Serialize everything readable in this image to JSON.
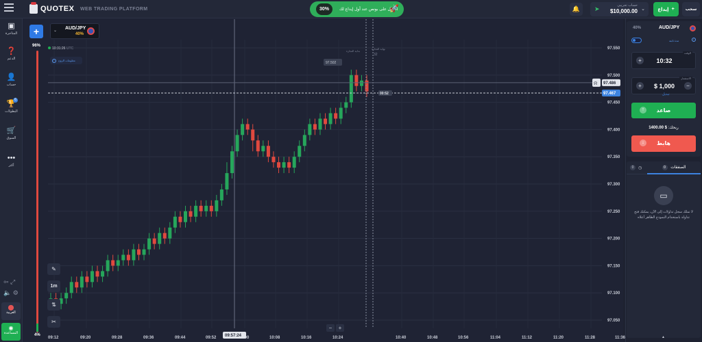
{
  "header": {
    "logo_text": "QUOTEX",
    "platform": "WEB TRADING PLATFORM",
    "promo": {
      "percent": "30%",
      "text": "احصل على بونص عند أول إيداع لك",
      "icon": "rocket-icon"
    },
    "account": {
      "label": "حساب تجريبي",
      "balance": "$10,000.00"
    },
    "deposit_label": "إيداع",
    "withdraw_label": "سحب"
  },
  "sidebar": {
    "items": [
      {
        "label": "المتاجرة",
        "icon": "chart-icon"
      },
      {
        "label": "الدعم",
        "icon": "help-icon"
      },
      {
        "label": "حساب",
        "icon": "user-icon"
      },
      {
        "label": "البطولات",
        "icon": "trophy-icon",
        "badge": "6"
      },
      {
        "label": "السوق",
        "icon": "market-icon"
      },
      {
        "label": "أكثر",
        "icon": "more-icon"
      }
    ],
    "language_label": "العربية",
    "support_label": "المساعدة"
  },
  "chart_toolbar": {
    "asset": "AUD/JPY",
    "asset_payout": "40%",
    "time": "10:31:26",
    "timezone": "UTC",
    "info_pill": "معلومات الزوج",
    "timeframe": "1m",
    "volume_top": "96%",
    "volume_bottom": "4%",
    "zoom_minus": "−",
    "zoom_plus": "+"
  },
  "chart_annotations": {
    "start_label": "بداية التجارة",
    "end_label": "نهاية التجارة",
    "end_seconds": "32",
    "current_price": "97.467",
    "alert_price": "97.486",
    "cursor_price": "97.502",
    "countdown": "00:52",
    "cursor_time": "09:57:24"
  },
  "chart_data": {
    "type": "candlestick",
    "y_ticks": [
      "97.550",
      "97.500",
      "97.450",
      "97.400",
      "97.350",
      "97.300",
      "97.250",
      "97.200",
      "97.150",
      "97.100",
      "97.050"
    ],
    "x_ticks": [
      "09:12",
      "09:20",
      "09:28",
      "09:36",
      "09:44",
      "09:52",
      "10:00",
      "10:08",
      "10:16",
      "10:24",
      "10:40",
      "10:48",
      "10:56",
      "11:04",
      "11:12",
      "11:20",
      "11:28",
      "11:36"
    ],
    "ylim": [
      97.035,
      97.565
    ],
    "colors": {
      "up": "#26a65b",
      "down": "#e0493f"
    },
    "candles": [
      [
        97.08,
        97.09,
        97.07,
        97.1
      ],
      [
        97.09,
        97.08,
        97.07,
        97.1
      ],
      [
        97.08,
        97.09,
        97.07,
        97.1
      ],
      [
        97.09,
        97.1,
        97.08,
        97.11
      ],
      [
        97.1,
        97.12,
        97.09,
        97.13
      ],
      [
        97.12,
        97.11,
        97.1,
        97.13
      ],
      [
        97.11,
        97.13,
        97.1,
        97.14
      ],
      [
        97.13,
        97.12,
        97.11,
        97.14
      ],
      [
        97.12,
        97.14,
        97.11,
        97.15
      ],
      [
        97.14,
        97.13,
        97.12,
        97.15
      ],
      [
        97.13,
        97.14,
        97.12,
        97.15
      ],
      [
        97.14,
        97.16,
        97.13,
        97.17
      ],
      [
        97.16,
        97.15,
        97.14,
        97.17
      ],
      [
        97.15,
        97.16,
        97.14,
        97.17
      ],
      [
        97.16,
        97.17,
        97.15,
        97.18
      ],
      [
        97.17,
        97.16,
        97.15,
        97.18
      ],
      [
        97.16,
        97.18,
        97.15,
        97.19
      ],
      [
        97.18,
        97.17,
        97.16,
        97.19
      ],
      [
        97.17,
        97.18,
        97.16,
        97.19
      ],
      [
        97.18,
        97.2,
        97.17,
        97.21
      ],
      [
        97.2,
        97.19,
        97.18,
        97.21
      ],
      [
        97.19,
        97.21,
        97.18,
        97.22
      ],
      [
        97.21,
        97.2,
        97.19,
        97.22
      ],
      [
        97.2,
        97.22,
        97.19,
        97.23
      ],
      [
        97.22,
        97.24,
        97.21,
        97.25
      ],
      [
        97.24,
        97.23,
        97.22,
        97.25
      ],
      [
        97.23,
        97.25,
        97.22,
        97.26
      ],
      [
        97.25,
        97.24,
        97.23,
        97.26
      ],
      [
        97.24,
        97.26,
        97.23,
        97.27
      ],
      [
        97.26,
        97.25,
        97.24,
        97.27
      ],
      [
        97.25,
        97.26,
        97.24,
        97.27
      ],
      [
        97.26,
        97.25,
        97.24,
        97.27
      ],
      [
        97.25,
        97.27,
        97.24,
        97.28
      ],
      [
        97.27,
        97.29,
        97.26,
        97.3
      ],
      [
        97.29,
        97.32,
        97.28,
        97.34
      ],
      [
        97.32,
        97.36,
        97.31,
        97.37
      ],
      [
        97.36,
        97.39,
        97.35,
        97.4
      ],
      [
        97.39,
        97.41,
        97.38,
        97.42
      ],
      [
        97.41,
        97.4,
        97.39,
        97.42
      ],
      [
        97.4,
        97.38,
        97.36,
        97.41
      ],
      [
        97.38,
        97.36,
        97.35,
        97.39
      ],
      [
        97.36,
        97.37,
        97.35,
        97.38
      ],
      [
        97.37,
        97.35,
        97.34,
        97.38
      ],
      [
        97.35,
        97.34,
        97.33,
        97.36
      ],
      [
        97.34,
        97.33,
        97.32,
        97.35
      ],
      [
        97.33,
        97.34,
        97.32,
        97.35
      ],
      [
        97.34,
        97.33,
        97.32,
        97.35
      ],
      [
        97.33,
        97.35,
        97.32,
        97.36
      ],
      [
        97.35,
        97.37,
        97.34,
        97.38
      ],
      [
        97.37,
        97.39,
        97.36,
        97.4
      ],
      [
        97.39,
        97.41,
        97.38,
        97.42
      ],
      [
        97.41,
        97.4,
        97.39,
        97.42
      ],
      [
        97.4,
        97.42,
        97.39,
        97.43
      ],
      [
        97.42,
        97.41,
        97.4,
        97.43
      ],
      [
        97.41,
        97.43,
        97.4,
        97.44
      ],
      [
        97.43,
        97.42,
        97.41,
        97.44
      ],
      [
        97.42,
        97.44,
        97.41,
        97.45
      ],
      [
        97.44,
        97.45,
        97.43,
        97.46
      ],
      [
        97.45,
        97.5,
        97.44,
        97.51
      ],
      [
        97.5,
        97.48,
        97.47,
        97.51
      ],
      [
        97.48,
        97.49,
        97.47,
        97.5
      ],
      [
        97.49,
        97.47,
        97.46,
        97.5
      ]
    ]
  },
  "trade_panel": {
    "payout": "40%",
    "asset": "AUD/JPY",
    "toggle_label": "مدة ثابتة",
    "time_label": "الوقت",
    "time_value": "10:32",
    "amount_label": "الاستثمار",
    "amount_value": "$ 1,000",
    "switch_link": "تبديل",
    "up_label": "صاعد",
    "down_label": "هابط",
    "payout_label": "ربحك:",
    "payout_value": "$ 1400.00"
  },
  "trades_panel": {
    "tab_active": "الصفقات",
    "tab_active_count": "0",
    "tab_other_count": "0",
    "empty_text": "لا تملك سجل تداولات إلى الآن، يمكنك فتح تداولة باستخدام النموذج الظاهر أعلاه"
  }
}
